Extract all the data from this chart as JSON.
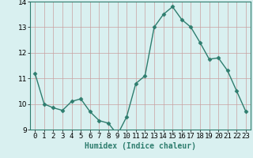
{
  "x": [
    0,
    1,
    2,
    3,
    4,
    5,
    6,
    7,
    8,
    9,
    10,
    11,
    12,
    13,
    14,
    15,
    16,
    17,
    18,
    19,
    20,
    21,
    22,
    23
  ],
  "y": [
    11.2,
    10.0,
    9.85,
    9.75,
    10.1,
    10.2,
    9.7,
    9.35,
    9.25,
    8.8,
    9.5,
    10.8,
    11.1,
    13.0,
    13.5,
    13.8,
    13.3,
    13.0,
    12.4,
    11.75,
    11.8,
    11.3,
    10.5,
    9.7
  ],
  "xlabel": "Humidex (Indice chaleur)",
  "ylim": [
    9,
    14
  ],
  "xlim": [
    -0.5,
    23.5
  ],
  "yticks": [
    9,
    10,
    11,
    12,
    13,
    14
  ],
  "xtick_labels": [
    "0",
    "1",
    "2",
    "3",
    "4",
    "5",
    "6",
    "7",
    "8",
    "9",
    "10",
    "11",
    "12",
    "13",
    "14",
    "15",
    "16",
    "17",
    "18",
    "19",
    "20",
    "21",
    "22",
    "23"
  ],
  "line_color": "#2e7d6e",
  "marker": "D",
  "marker_size": 2.5,
  "bg_color": "#d9f0f0",
  "grid_color_v": "#c8a0a0",
  "grid_color_h": "#c8a0a0",
  "xlabel_fontsize": 7,
  "tick_fontsize": 6.5,
  "line_width": 1.0
}
